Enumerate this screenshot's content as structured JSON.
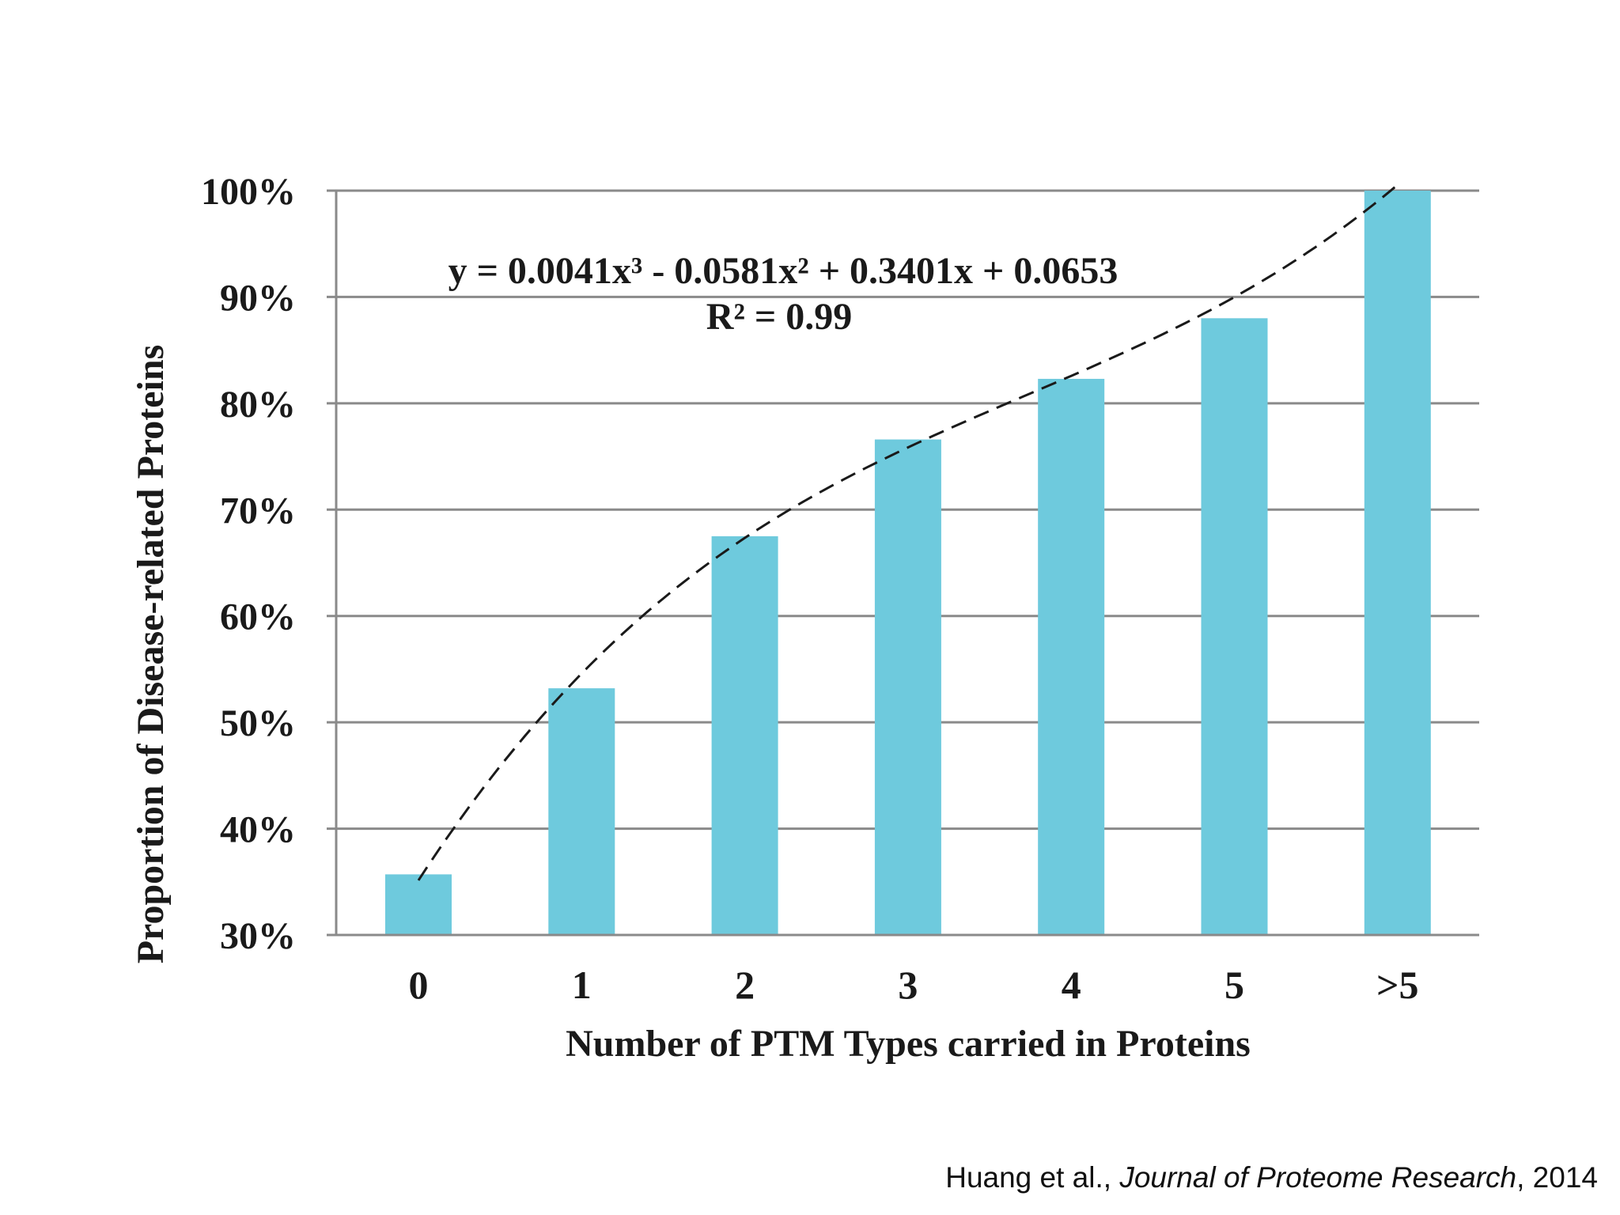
{
  "chart_data": {
    "type": "bar",
    "title": "",
    "xlabel": "Number of PTM Types carried in Proteins",
    "ylabel": "Proportion of Disease-related Proteins",
    "categories": [
      "0",
      "1",
      "2",
      "3",
      "4",
      "5",
      ">5"
    ],
    "values": [
      35.7,
      53.2,
      67.5,
      76.6,
      82.3,
      88.0,
      100.0
    ],
    "value_unit": "%",
    "ylim": [
      30,
      100
    ],
    "yticks": [
      "30%",
      "40%",
      "50%",
      "60%",
      "70%",
      "80%",
      "90%",
      "100%"
    ],
    "ytick_values": [
      30,
      40,
      50,
      60,
      70,
      80,
      90,
      100
    ],
    "grid": true,
    "legend": "none",
    "bar_color": "#6ECADD",
    "trendline": {
      "type": "polynomial",
      "style": "dashed",
      "color": "#1a1a1a",
      "coefficients": [
        0.0041,
        -0.0581,
        0.3401,
        0.0653
      ],
      "equation": "y = 0.0041x³ - 0.0581x² + 0.3401x + 0.0653",
      "r_squared": "R² = 0.99"
    }
  },
  "citation": {
    "authors": "Huang et al., ",
    "journal": "Journal of Proteome Research",
    "year": ", 2014"
  }
}
